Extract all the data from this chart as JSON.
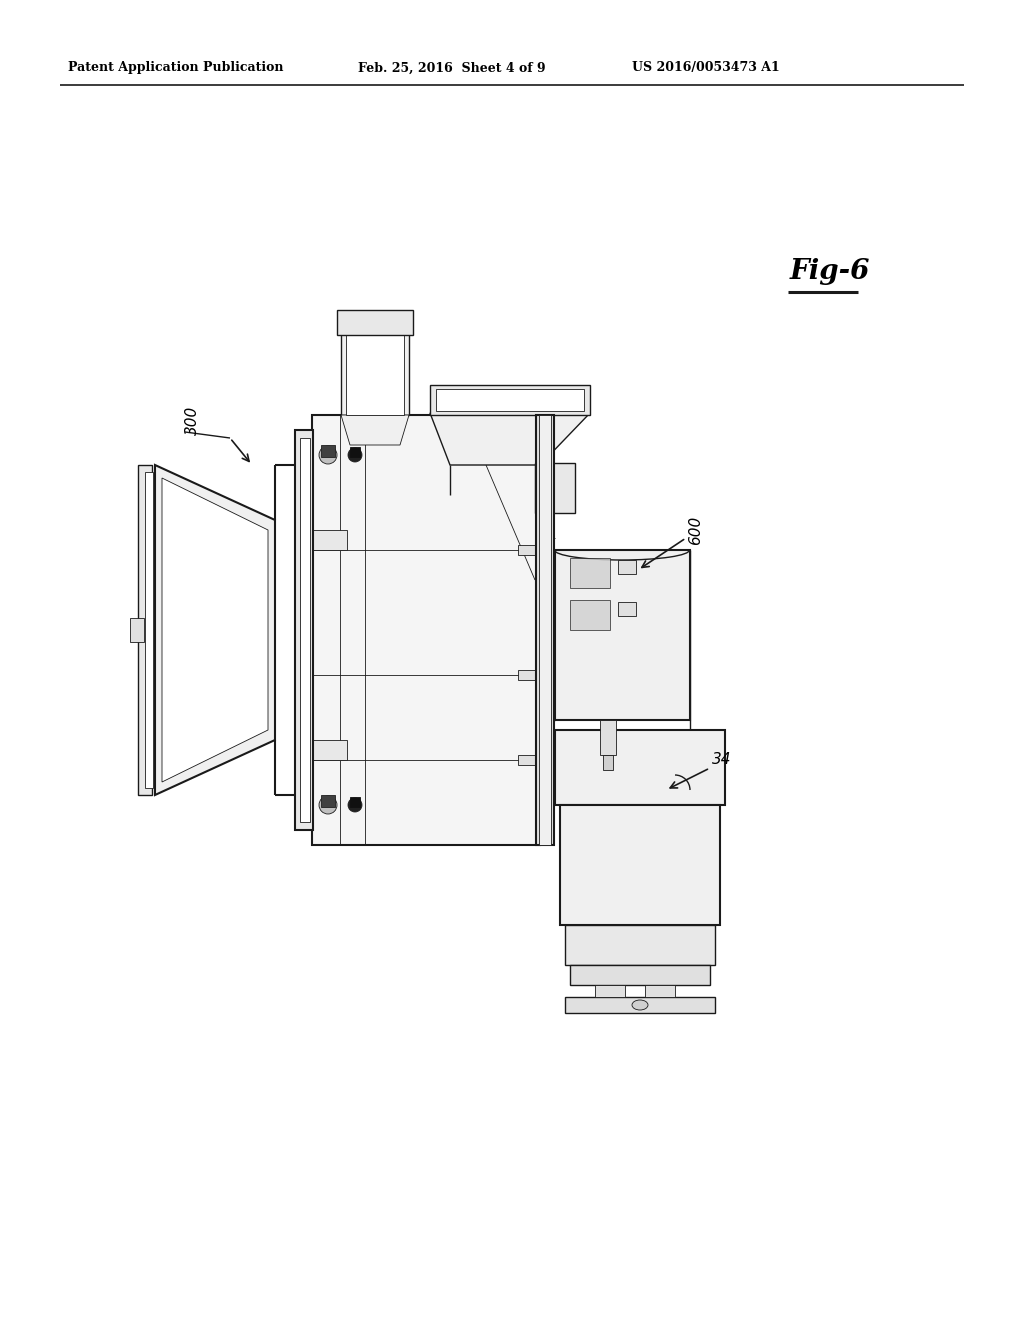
{
  "bg_color": "#ffffff",
  "header_left": "Patent Application Publication",
  "header_mid": "Feb. 25, 2016  Sheet 4 of 9",
  "header_right": "US 2016/0053473 A1",
  "fig_label": "Fig-6",
  "label_300": "300",
  "label_600": "600",
  "label_34": "34",
  "line_color": "#1a1a1a",
  "gray_light": "#d0d0d0",
  "gray_mid": "#a0a0a0",
  "gray_dark": "#606060",
  "hatch_color": "#888888"
}
